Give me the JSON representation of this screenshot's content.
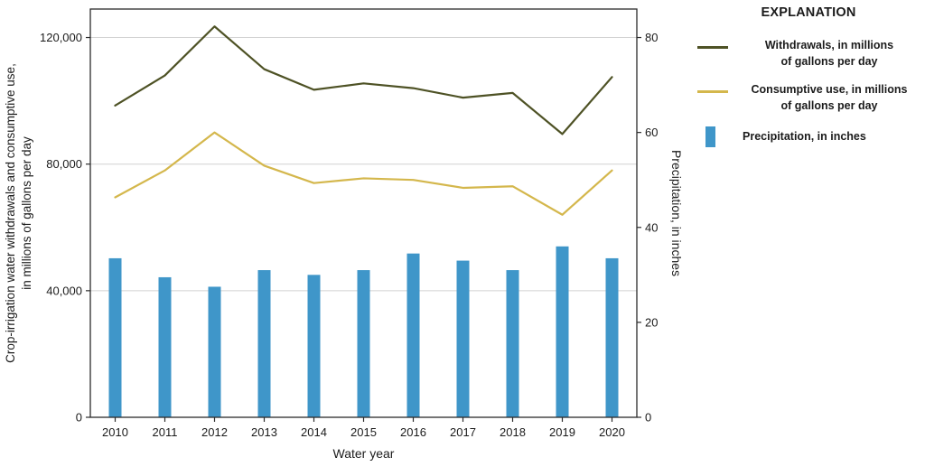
{
  "legend": {
    "title": "EXPLANATION",
    "items": [
      {
        "swatch": "line",
        "color": "#4e5225",
        "label": "Withdrawals, in millions\nof gallons per day"
      },
      {
        "swatch": "line",
        "color": "#d4b74c",
        "label": "Consumptive use, in millions\nof gallons per day"
      },
      {
        "swatch": "bar",
        "color": "#3f96c9",
        "label": "Precipitation, in inches"
      }
    ]
  },
  "chart_data": {
    "type": "combo",
    "categories": [
      "2010",
      "2011",
      "2012",
      "2013",
      "2014",
      "2015",
      "2016",
      "2017",
      "2018",
      "2019",
      "2020"
    ],
    "xlabel": "Water year",
    "grid": "horizontal",
    "legend_position": "right",
    "left_axis": {
      "label_line1": "Crop-irrigation water withdrawals and consumptive use,",
      "label_line2": "in millions of gallons per day",
      "ticks": [
        0,
        40000,
        80000,
        120000
      ],
      "tick_labels": [
        "0",
        "40,000",
        "80,000",
        "120,000"
      ],
      "ylim": [
        0,
        129000
      ]
    },
    "right_axis": {
      "label": "Precipitation, in inches",
      "ticks": [
        0,
        20,
        40,
        60,
        80
      ],
      "tick_labels": [
        "0",
        "20",
        "40",
        "60",
        "80"
      ],
      "ylim": [
        0,
        86
      ]
    },
    "series": [
      {
        "name": "Withdrawals, in millions of gallons per day",
        "type": "line",
        "axis": "left",
        "color": "#4e5225",
        "values": [
          98500,
          108000,
          123500,
          110000,
          103500,
          105500,
          104000,
          101000,
          102500,
          89500,
          107500
        ]
      },
      {
        "name": "Consumptive use, in millions of gallons per day",
        "type": "line",
        "axis": "left",
        "color": "#d4b74c",
        "values": [
          69500,
          78000,
          90000,
          79500,
          74000,
          75500,
          75000,
          72500,
          73000,
          64000,
          78000
        ]
      },
      {
        "name": "Precipitation, in inches",
        "type": "bar",
        "axis": "right",
        "color": "#3f96c9",
        "values": [
          33.5,
          29.5,
          27.5,
          31,
          30,
          31,
          34.5,
          33,
          31,
          36,
          33.5
        ]
      }
    ]
  }
}
